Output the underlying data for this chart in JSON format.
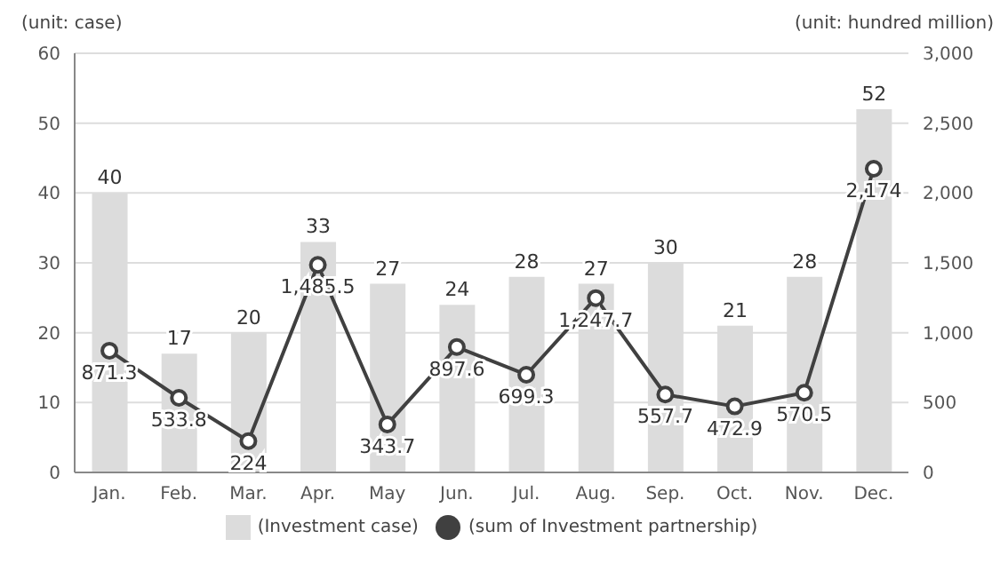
{
  "chart_data": {
    "type": "bar",
    "categories": [
      "Jan.",
      "Feb.",
      "Mar.",
      "Apr.",
      "May",
      "Jun.",
      "Jul.",
      "Aug.",
      "Sep.",
      "Oct.",
      "Nov.",
      "Dec."
    ],
    "series": [
      {
        "name": "(Investment case)",
        "color": "#dcdcdc",
        "values": [
          40,
          17,
          20,
          33,
          27,
          24,
          28,
          27,
          30,
          21,
          28,
          52
        ],
        "value_labels": [
          "40",
          "17",
          "20",
          "33",
          "27",
          "24",
          "28",
          "27",
          "30",
          "21",
          "28",
          "52"
        ]
      },
      {
        "name": "(sum of Investment partnership)",
        "type": "line",
        "axis": "y2",
        "color": "#404040",
        "marker": "circle",
        "values": [
          871.3,
          533.8,
          224,
          1485.5,
          343.7,
          897.6,
          699.3,
          1247.7,
          557.7,
          472.9,
          570.5,
          2174
        ],
        "value_labels": [
          "871.3",
          "533.8",
          "224",
          "1,485.5",
          "343.7",
          "897.6",
          "699.3",
          "1,247.7",
          "557.7",
          "472.9",
          "570.5",
          "2,174"
        ]
      }
    ],
    "ylim": [
      0,
      60
    ],
    "yticks": [
      0,
      10,
      20,
      30,
      40,
      50,
      60
    ],
    "y2lim": [
      0,
      3000
    ],
    "y2ticks": [
      0,
      500,
      {
        "value": 1000,
        "label": "1,000"
      },
      {
        "value": 1500,
        "label": "1,500"
      },
      {
        "value": 2000,
        "label": "2,000"
      },
      {
        "value": 2500,
        "label": "2,500"
      },
      {
        "value": 3000,
        "label": "3,000"
      }
    ],
    "annotations": [
      "(unit: case)",
      "(unit: hundred million)"
    ],
    "grid": "y",
    "legend": "bottom"
  }
}
